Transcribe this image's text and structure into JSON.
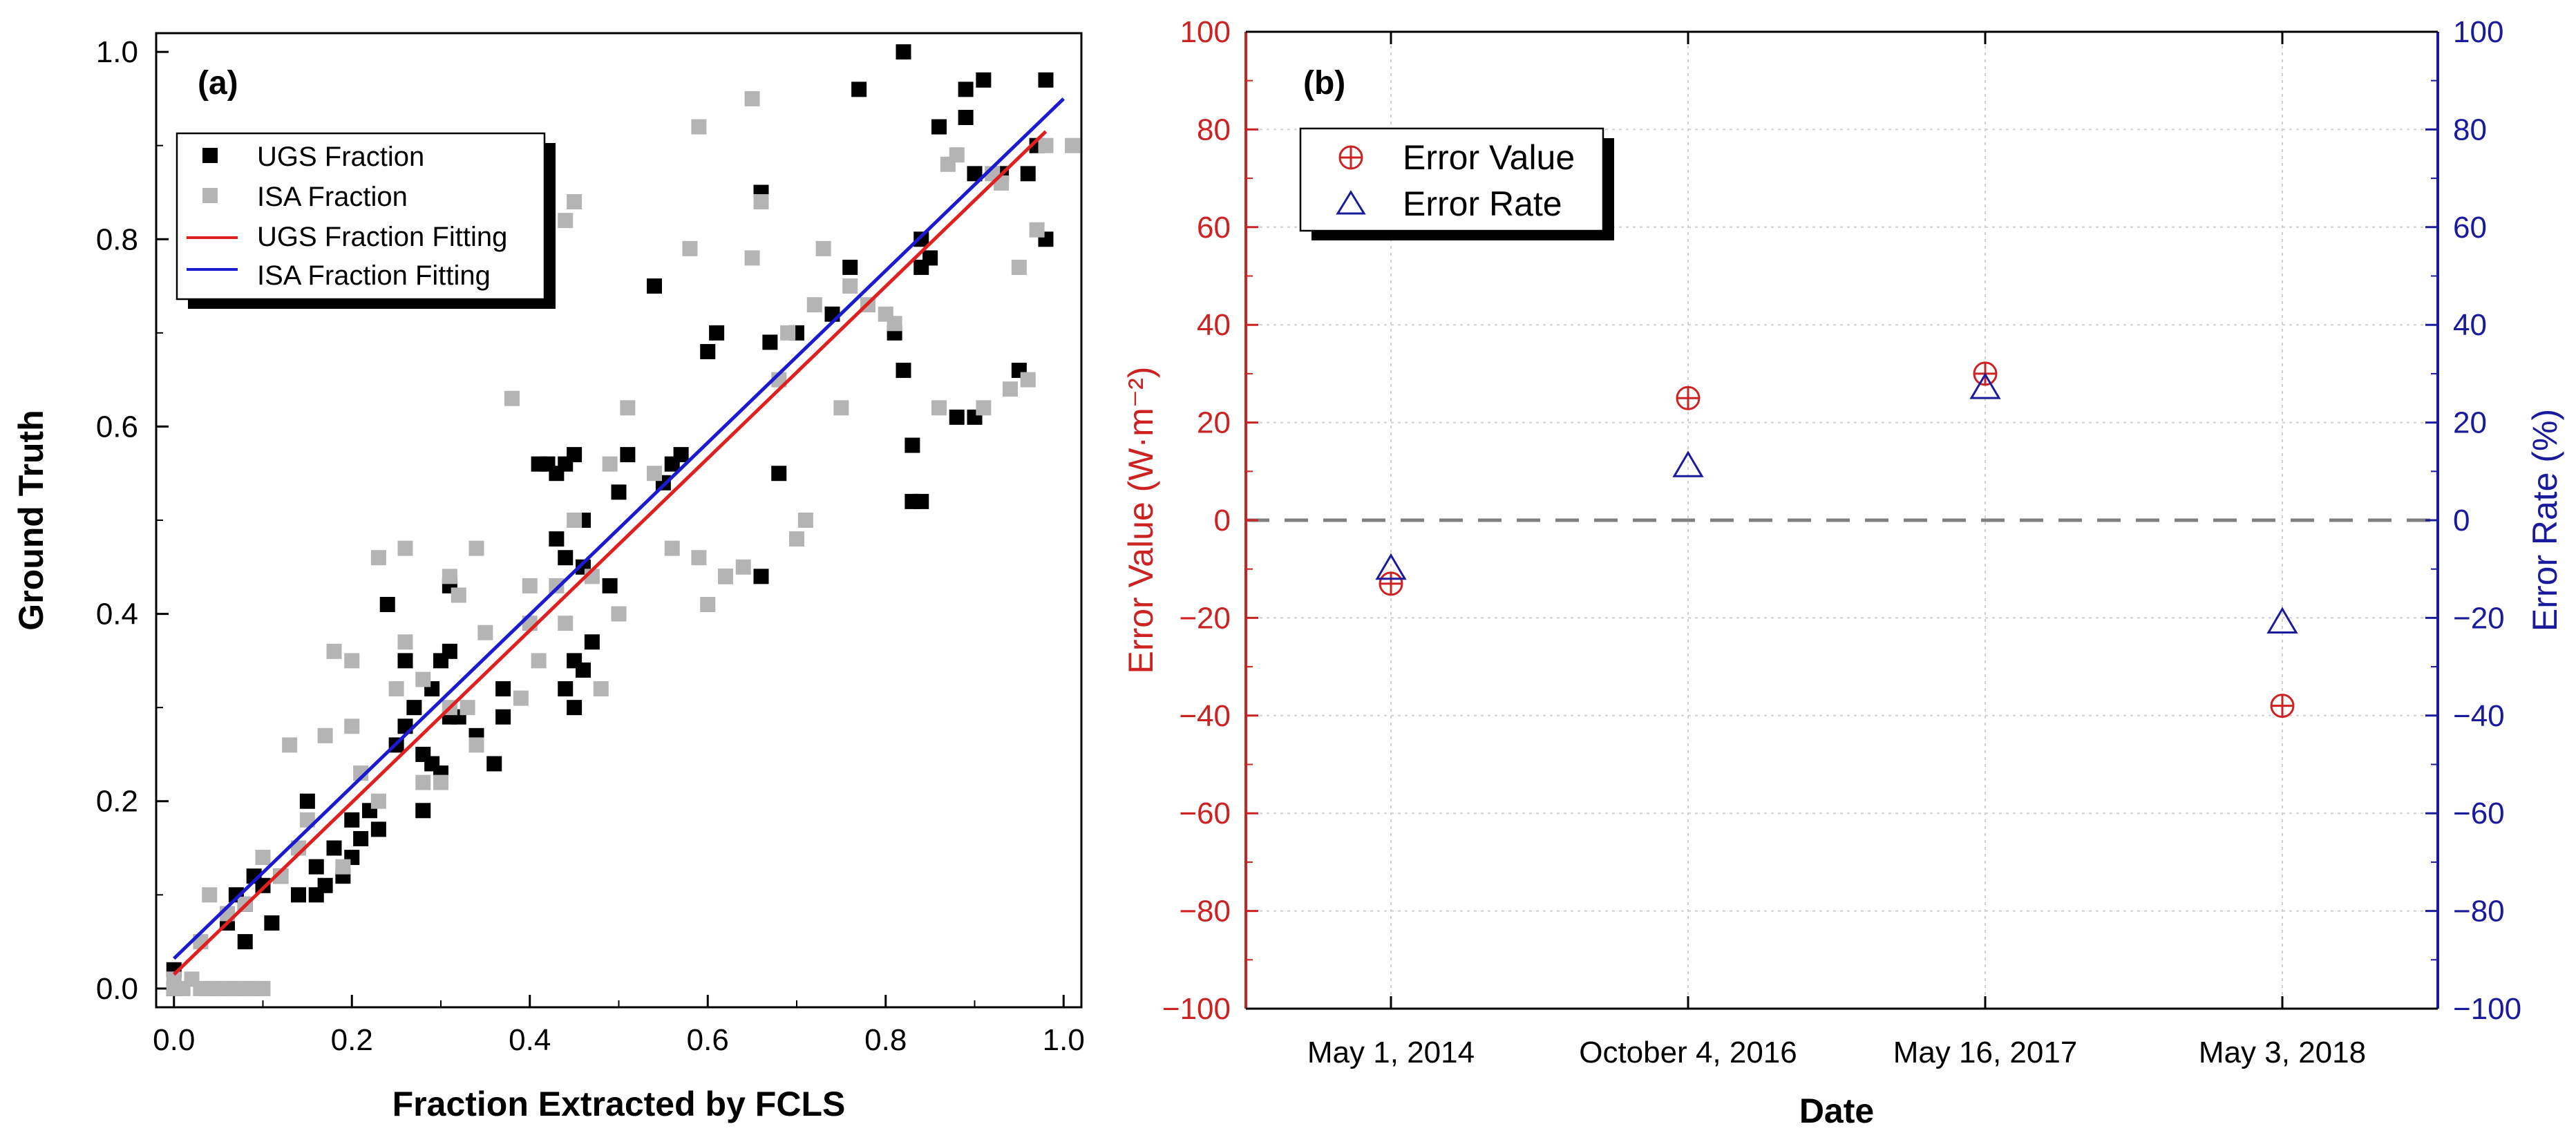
{
  "chart_data": [
    {
      "type": "scatter",
      "panel_label": "(a)",
      "xlabel": "Fraction Extracted by FCLS",
      "ylabel": "Ground Truth",
      "xlim": [
        -0.02,
        1.02
      ],
      "ylim": [
        -0.02,
        1.02
      ],
      "x_ticks": [
        "0.0",
        "0.2",
        "0.4",
        "0.6",
        "0.8",
        "1.0"
      ],
      "y_ticks": [
        "0.0",
        "0.2",
        "0.4",
        "0.6",
        "0.8",
        "1.0"
      ],
      "grid": false,
      "legend_position": "top-left",
      "legend": [
        "UGS Fraction",
        "ISA Fraction",
        "UGS Fraction Fitting",
        "ISA Fraction Fitting"
      ],
      "series": [
        {
          "name": "UGS Fraction",
          "kind": "points",
          "color": "#000000",
          "points": [
            [
              0.0,
              0.02
            ],
            [
              0.0,
              0.0
            ],
            [
              0.06,
              0.07
            ],
            [
              0.07,
              0.1
            ],
            [
              0.08,
              0.05
            ],
            [
              0.08,
              0.09
            ],
            [
              0.09,
              0.12
            ],
            [
              0.1,
              0.11
            ],
            [
              0.11,
              0.07
            ],
            [
              0.12,
              0.12
            ],
            [
              0.14,
              0.1
            ],
            [
              0.15,
              0.2
            ],
            [
              0.16,
              0.1
            ],
            [
              0.16,
              0.13
            ],
            [
              0.17,
              0.11
            ],
            [
              0.18,
              0.15
            ],
            [
              0.19,
              0.12
            ],
            [
              0.2,
              0.14
            ],
            [
              0.2,
              0.18
            ],
            [
              0.21,
              0.16
            ],
            [
              0.22,
              0.19
            ],
            [
              0.23,
              0.17
            ],
            [
              0.24,
              0.41
            ],
            [
              0.25,
              0.26
            ],
            [
              0.26,
              0.28
            ],
            [
              0.26,
              0.35
            ],
            [
              0.27,
              0.3
            ],
            [
              0.28,
              0.25
            ],
            [
              0.28,
              0.19
            ],
            [
              0.29,
              0.24
            ],
            [
              0.29,
              0.32
            ],
            [
              0.3,
              0.23
            ],
            [
              0.3,
              0.35
            ],
            [
              0.31,
              0.29
            ],
            [
              0.31,
              0.36
            ],
            [
              0.31,
              0.43
            ],
            [
              0.32,
              0.29
            ],
            [
              0.34,
              0.27
            ],
            [
              0.36,
              0.24
            ],
            [
              0.37,
              0.29
            ],
            [
              0.37,
              0.32
            ],
            [
              0.41,
              0.56
            ],
            [
              0.42,
              0.56
            ],
            [
              0.43,
              0.55
            ],
            [
              0.43,
              0.48
            ],
            [
              0.44,
              0.56
            ],
            [
              0.44,
              0.46
            ],
            [
              0.44,
              0.32
            ],
            [
              0.45,
              0.57
            ],
            [
              0.45,
              0.3
            ],
            [
              0.45,
              0.35
            ],
            [
              0.46,
              0.5
            ],
            [
              0.46,
              0.45
            ],
            [
              0.46,
              0.34
            ],
            [
              0.47,
              0.37
            ],
            [
              0.49,
              0.43
            ],
            [
              0.5,
              0.53
            ],
            [
              0.51,
              0.57
            ],
            [
              0.54,
              0.75
            ],
            [
              0.55,
              0.54
            ],
            [
              0.56,
              0.56
            ],
            [
              0.57,
              0.57
            ],
            [
              0.6,
              0.68
            ],
            [
              0.61,
              0.7
            ],
            [
              0.62,
              0.44
            ],
            [
              0.66,
              0.44
            ],
            [
              0.66,
              0.85
            ],
            [
              0.67,
              0.69
            ],
            [
              0.68,
              0.55
            ],
            [
              0.7,
              0.7
            ],
            [
              0.74,
              0.72
            ],
            [
              0.76,
              0.77
            ],
            [
              0.77,
              0.96
            ],
            [
              0.81,
              0.7
            ],
            [
              0.82,
              0.66
            ],
            [
              0.82,
              1.0
            ],
            [
              0.83,
              0.52
            ],
            [
              0.83,
              0.58
            ],
            [
              0.84,
              0.52
            ],
            [
              0.84,
              0.77
            ],
            [
              0.84,
              0.8
            ],
            [
              0.85,
              0.78
            ],
            [
              0.86,
              0.92
            ],
            [
              0.88,
              0.61
            ],
            [
              0.89,
              0.93
            ],
            [
              0.89,
              0.96
            ],
            [
              0.9,
              0.87
            ],
            [
              0.9,
              0.61
            ],
            [
              0.91,
              0.97
            ],
            [
              0.93,
              0.87
            ],
            [
              0.95,
              0.66
            ],
            [
              0.96,
              0.87
            ],
            [
              0.97,
              0.9
            ],
            [
              0.98,
              0.97
            ],
            [
              0.98,
              0.8
            ]
          ]
        },
        {
          "name": "ISA Fraction",
          "kind": "points",
          "color": "#b4b4b4",
          "points": [
            [
              0.0,
              0.0
            ],
            [
              0.0,
              0.01
            ],
            [
              0.01,
              0.0
            ],
            [
              0.02,
              0.01
            ],
            [
              0.03,
              0.0
            ],
            [
              0.04,
              0.0
            ],
            [
              0.05,
              0.0
            ],
            [
              0.06,
              0.0
            ],
            [
              0.07,
              0.0
            ],
            [
              0.08,
              0.0
            ],
            [
              0.09,
              0.0
            ],
            [
              0.1,
              0.0
            ],
            [
              0.03,
              0.05
            ],
            [
              0.04,
              0.1
            ],
            [
              0.06,
              0.08
            ],
            [
              0.08,
              0.09
            ],
            [
              0.1,
              0.14
            ],
            [
              0.12,
              0.12
            ],
            [
              0.13,
              0.26
            ],
            [
              0.14,
              0.15
            ],
            [
              0.15,
              0.18
            ],
            [
              0.17,
              0.27
            ],
            [
              0.18,
              0.36
            ],
            [
              0.19,
              0.13
            ],
            [
              0.2,
              0.35
            ],
            [
              0.2,
              0.28
            ],
            [
              0.21,
              0.23
            ],
            [
              0.23,
              0.2
            ],
            [
              0.23,
              0.46
            ],
            [
              0.25,
              0.32
            ],
            [
              0.26,
              0.37
            ],
            [
              0.26,
              0.47
            ],
            [
              0.28,
              0.22
            ],
            [
              0.28,
              0.33
            ],
            [
              0.3,
              0.22
            ],
            [
              0.31,
              0.3
            ],
            [
              0.31,
              0.44
            ],
            [
              0.32,
              0.42
            ],
            [
              0.33,
              0.3
            ],
            [
              0.34,
              0.26
            ],
            [
              0.34,
              0.47
            ],
            [
              0.35,
              0.38
            ],
            [
              0.38,
              0.63
            ],
            [
              0.39,
              0.31
            ],
            [
              0.4,
              0.43
            ],
            [
              0.4,
              0.39
            ],
            [
              0.41,
              0.35
            ],
            [
              0.43,
              0.43
            ],
            [
              0.44,
              0.82
            ],
            [
              0.44,
              0.39
            ],
            [
              0.45,
              0.84
            ],
            [
              0.45,
              0.5
            ],
            [
              0.47,
              0.44
            ],
            [
              0.48,
              0.32
            ],
            [
              0.49,
              0.56
            ],
            [
              0.5,
              0.4
            ],
            [
              0.51,
              0.62
            ],
            [
              0.54,
              0.55
            ],
            [
              0.56,
              0.47
            ],
            [
              0.58,
              0.79
            ],
            [
              0.59,
              0.92
            ],
            [
              0.59,
              0.46
            ],
            [
              0.6,
              0.41
            ],
            [
              0.62,
              0.44
            ],
            [
              0.64,
              0.45
            ],
            [
              0.65,
              0.95
            ],
            [
              0.65,
              0.78
            ],
            [
              0.66,
              0.84
            ],
            [
              0.68,
              0.65
            ],
            [
              0.69,
              0.7
            ],
            [
              0.7,
              0.48
            ],
            [
              0.71,
              0.5
            ],
            [
              0.72,
              0.73
            ],
            [
              0.73,
              0.79
            ],
            [
              0.75,
              0.62
            ],
            [
              0.76,
              0.75
            ],
            [
              0.78,
              0.73
            ],
            [
              0.8,
              0.72
            ],
            [
              0.81,
              0.71
            ],
            [
              0.86,
              0.62
            ],
            [
              0.87,
              0.88
            ],
            [
              0.88,
              0.89
            ],
            [
              0.91,
              0.62
            ],
            [
              0.92,
              0.87
            ],
            [
              0.93,
              0.86
            ],
            [
              0.94,
              0.64
            ],
            [
              0.95,
              0.77
            ],
            [
              0.96,
              0.65
            ],
            [
              0.97,
              0.81
            ],
            [
              0.98,
              0.9
            ],
            [
              1.01,
              0.9
            ]
          ]
        },
        {
          "name": "UGS Fraction Fitting",
          "kind": "line",
          "color": "#e02020",
          "x": [
            0.0,
            0.98
          ],
          "y": [
            0.015,
            0.915
          ]
        },
        {
          "name": "ISA Fraction Fitting",
          "kind": "line",
          "color": "#1a1ad0",
          "x": [
            0.0,
            1.0
          ],
          "y": [
            0.032,
            0.95
          ]
        }
      ]
    },
    {
      "type": "scatter",
      "panel_label": "(b)",
      "xlabel": "Date",
      "ylabel_left": "Error Value (W·m⁻²)",
      "ylabel_right": "Error Rate (%)",
      "categories": [
        "May 1, 2014",
        "October 4, 2016",
        "May 16, 2017",
        "May 3, 2018"
      ],
      "ylim_left": [
        -100,
        100
      ],
      "ylim_right": [
        -100,
        100
      ],
      "y_ticks": [
        "−100",
        "−80",
        "−60",
        "−40",
        "−20",
        "0",
        "20",
        "40",
        "60",
        "80",
        "100"
      ],
      "grid": true,
      "reference_line": 0,
      "legend_position": "top-left",
      "legend": [
        "Error Value",
        "Error Rate"
      ],
      "series": [
        {
          "name": "Error Value",
          "axis": "left",
          "marker": "circle-plus",
          "color": "#cc2222",
          "values": [
            -13,
            25,
            30,
            -38
          ]
        },
        {
          "name": "Error Rate",
          "axis": "right",
          "marker": "triangle",
          "color": "#1a1a9c",
          "values": [
            -10,
            11,
            27,
            -21
          ]
        }
      ]
    }
  ]
}
